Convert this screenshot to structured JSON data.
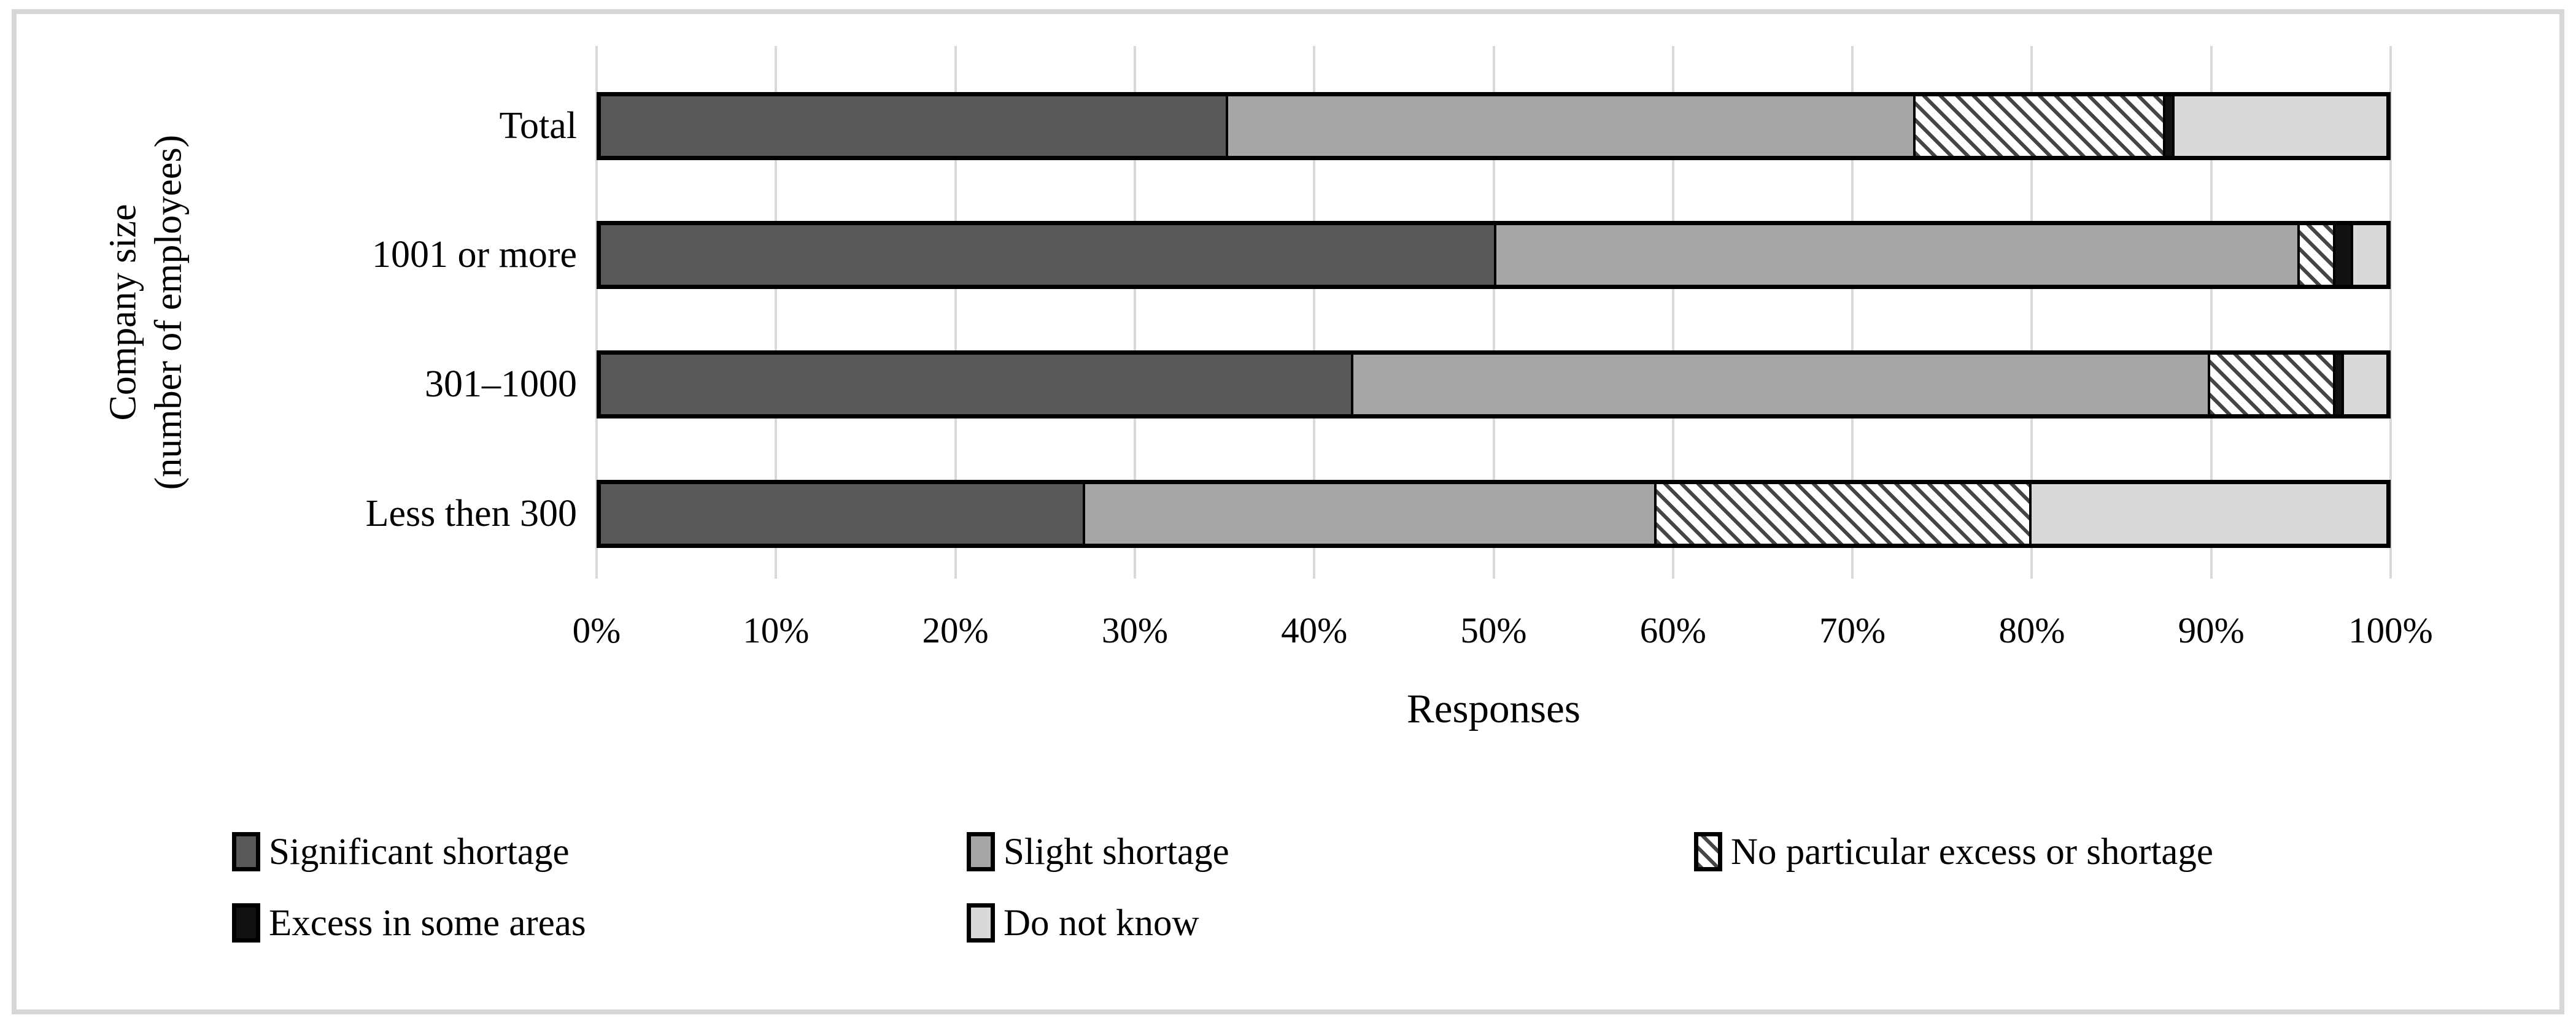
{
  "figure": {
    "y_axis_title_line1": "Company size",
    "y_axis_title_line2": "(number of employees)",
    "x_axis_title": "Responses"
  },
  "chart_data": {
    "type": "bar",
    "orientation": "horizontal-stacked",
    "title": "",
    "xlabel": "Responses",
    "ylabel": "Company size (number of employees)",
    "xlim": [
      0,
      100
    ],
    "grid": true,
    "legend_position": "bottom",
    "x_ticks": [
      "0%",
      "10%",
      "20%",
      "30%",
      "40%",
      "50%",
      "60%",
      "70%",
      "80%",
      "90%",
      "100%"
    ],
    "categories": [
      "Total",
      "1001 or more",
      "301–1000",
      "Less then 300"
    ],
    "series": [
      {
        "name": "Significant shortage",
        "fill": "solid",
        "color": "#595959",
        "values": [
          35,
          50,
          42,
          27
        ]
      },
      {
        "name": "Slight shortage",
        "fill": "solid",
        "color": "#a6a6a6",
        "values": [
          38.5,
          45,
          48,
          32
        ]
      },
      {
        "name": "No particular excess or shortage",
        "fill": "hatch",
        "color": "#ffffff",
        "hatch_color": "#454545",
        "values": [
          14,
          2,
          7,
          21
        ]
      },
      {
        "name": "Excess in some areas",
        "fill": "solid",
        "color": "#111111",
        "values": [
          0.5,
          1,
          0.5,
          0
        ]
      },
      {
        "name": "Do not know",
        "fill": "solid",
        "color": "#d9d9d9",
        "values": [
          12,
          2,
          2.5,
          20
        ]
      }
    ]
  },
  "colors": {
    "gridline": "#d9d9d9",
    "bar_border": "#000000",
    "frame_border": "#d7d7d7",
    "text": "#000000"
  }
}
